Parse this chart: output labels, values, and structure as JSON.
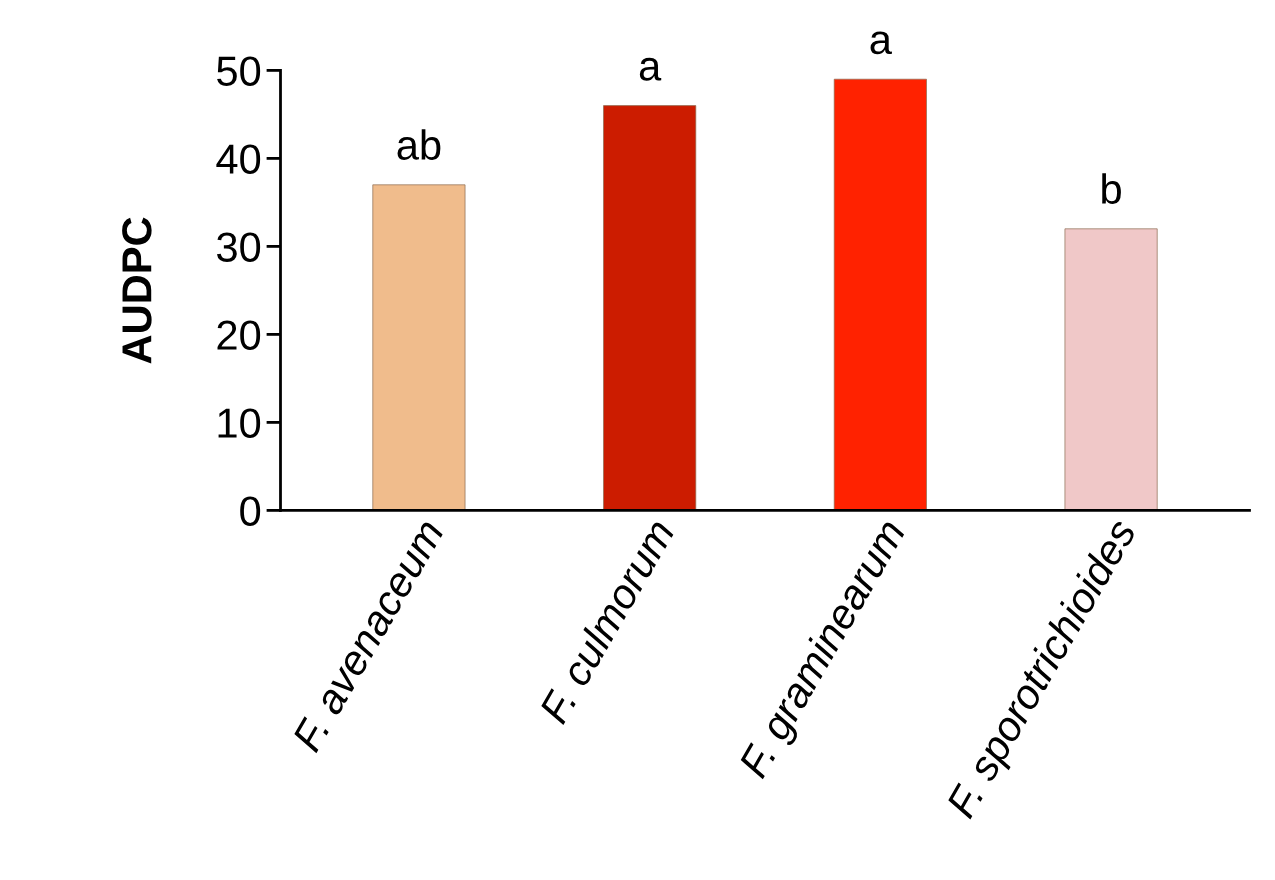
{
  "chart_data": {
    "type": "bar",
    "ylabel": "AUDPC",
    "categories": [
      "F. avenaceum",
      "F. culmorum",
      "F. graminearum",
      "F. sporotrichioides"
    ],
    "values": [
      37,
      46,
      49,
      32
    ],
    "colors": [
      "#f0bc8c",
      "#cc1c00",
      "#ff2200",
      "#f0c8c8"
    ],
    "ylim": [
      0,
      50
    ],
    "yticks": [
      0,
      10,
      20,
      30,
      40,
      50
    ],
    "grid": false,
    "annotations": [
      {
        "text": "ab",
        "x": "F. avenaceum",
        "y": 37
      },
      {
        "text": "a",
        "x": "F. culmorum",
        "y": 46
      },
      {
        "text": "a",
        "x": "F. graminearum",
        "y": 49
      },
      {
        "text": "b",
        "x": "F. sporotrichioides",
        "y": 32
      }
    ]
  }
}
